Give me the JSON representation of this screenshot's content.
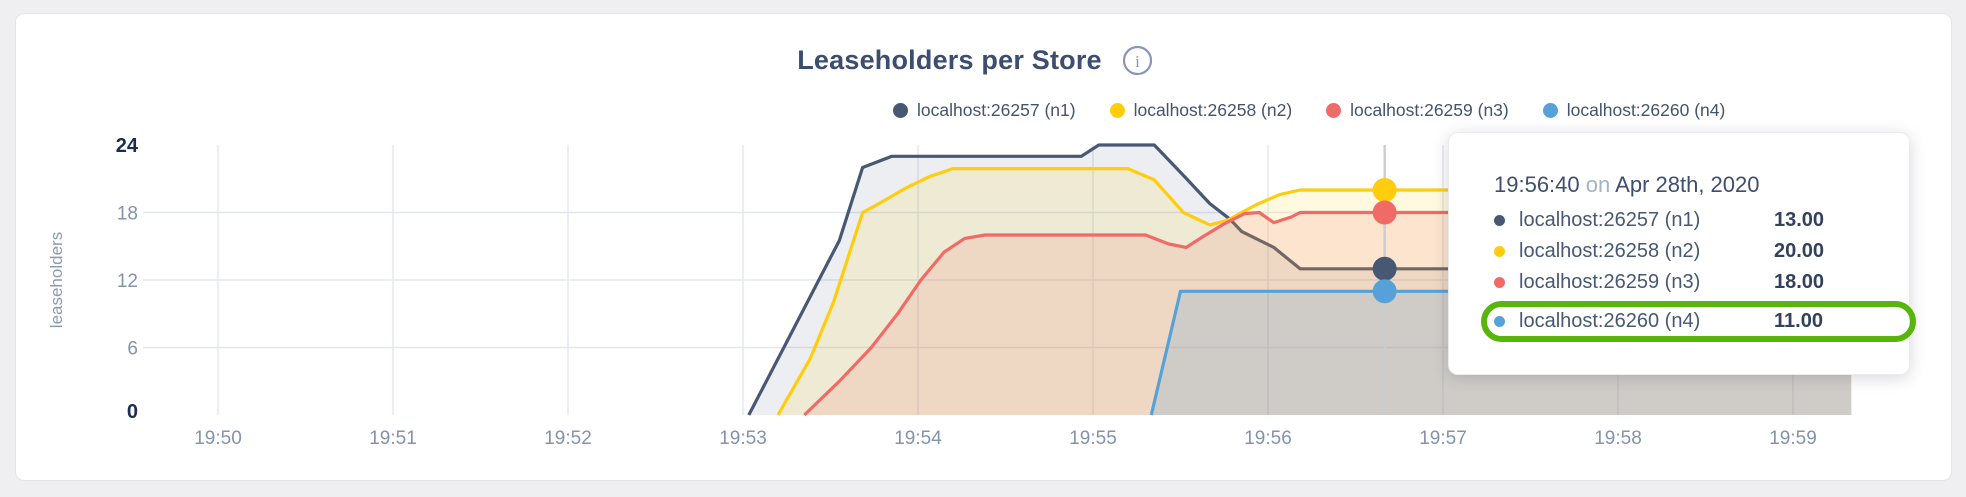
{
  "chart_data": {
    "type": "area",
    "title": "Leaseholders per Store",
    "ylabel": "leaseholders",
    "ylim": [
      0,
      24
    ],
    "yticks": [
      0,
      6,
      12,
      18,
      24
    ],
    "yticks_emphasized": [
      0,
      24
    ],
    "xticks": [
      "19:50",
      "19:51",
      "19:52",
      "19:53",
      "19:54",
      "19:55",
      "19:56",
      "19:57",
      "19:58",
      "19:59"
    ],
    "grid": true,
    "legend_position": "top",
    "x_unit": "seconds after 19:50:00",
    "series": [
      {
        "name": "localhost:26257 (n1)",
        "color": "#475872",
        "points": [
          [
            182,
            0
          ],
          [
            196,
            7
          ],
          [
            210,
            14
          ],
          [
            213,
            15.5
          ],
          [
            221,
            22
          ],
          [
            231,
            23
          ],
          [
            296,
            23
          ],
          [
            302,
            24
          ],
          [
            321,
            24
          ],
          [
            331,
            21.3
          ],
          [
            340,
            18.8
          ],
          [
            347,
            17.4
          ],
          [
            351,
            16.3
          ],
          [
            362,
            14.9
          ],
          [
            371,
            13
          ],
          [
            560,
            13
          ]
        ]
      },
      {
        "name": "localhost:26258 (n2)",
        "color": "#ffcd0d",
        "points": [
          [
            192,
            0
          ],
          [
            203,
            5
          ],
          [
            211,
            10
          ],
          [
            216,
            14
          ],
          [
            221,
            18
          ],
          [
            228,
            19
          ],
          [
            236,
            20.2
          ],
          [
            244,
            21.2
          ],
          [
            252,
            21.9
          ],
          [
            312,
            21.9
          ],
          [
            321,
            20.9
          ],
          [
            331,
            18
          ],
          [
            340,
            16.9
          ],
          [
            346,
            17.3
          ],
          [
            356,
            18.7
          ],
          [
            364,
            19.6
          ],
          [
            371,
            20
          ],
          [
            560,
            20
          ]
        ]
      },
      {
        "name": "localhost:26259 (n3)",
        "color": "#f06b67",
        "points": [
          [
            201,
            0
          ],
          [
            213,
            3
          ],
          [
            224,
            6
          ],
          [
            233,
            9
          ],
          [
            241,
            12
          ],
          [
            249,
            14.5
          ],
          [
            256,
            15.7
          ],
          [
            263,
            16
          ],
          [
            318,
            16
          ],
          [
            326,
            15.2
          ],
          [
            332,
            14.9
          ],
          [
            338,
            15.9
          ],
          [
            345,
            17
          ],
          [
            352,
            17.9
          ],
          [
            357,
            18
          ],
          [
            362,
            17.1
          ],
          [
            368,
            17.6
          ],
          [
            371,
            18
          ],
          [
            560,
            18
          ]
        ]
      },
      {
        "name": "localhost:26260 (n4)",
        "color": "#56a2d8",
        "points": [
          [
            320,
            0
          ],
          [
            330,
            11
          ],
          [
            560,
            11
          ]
        ]
      }
    ],
    "fill_opacity": [
      0.1,
      0.13,
      0.14,
      0.2
    ]
  },
  "hover": {
    "time_seconds": 400,
    "values": [
      13,
      20,
      18,
      11
    ],
    "guideline_color": "#c9ccd1"
  },
  "tooltip": {
    "time": "19:56:40",
    "separator": "on",
    "date": "Apr 28th, 2020",
    "rows": [
      {
        "label": "localhost:26257 (n1)",
        "value": "13.00",
        "color": "#475872"
      },
      {
        "label": "localhost:26258 (n2)",
        "value": "20.00",
        "color": "#ffcd0d"
      },
      {
        "label": "localhost:26259 (n3)",
        "value": "18.00",
        "color": "#f06b67"
      },
      {
        "label": "localhost:26260 (n4)",
        "value": "11.00",
        "color": "#56a2d8"
      }
    ],
    "highlight_row_index": 3,
    "highlight_color": "#58b50c"
  },
  "icons": {
    "info": "i"
  },
  "colors": {
    "title": "#3c4d6f",
    "grid_vertical": "#e6eaf1",
    "grid_horizontal": "#e3e8f0",
    "tick": "#8493ac",
    "tick_emphasized": "#1c2d52"
  }
}
